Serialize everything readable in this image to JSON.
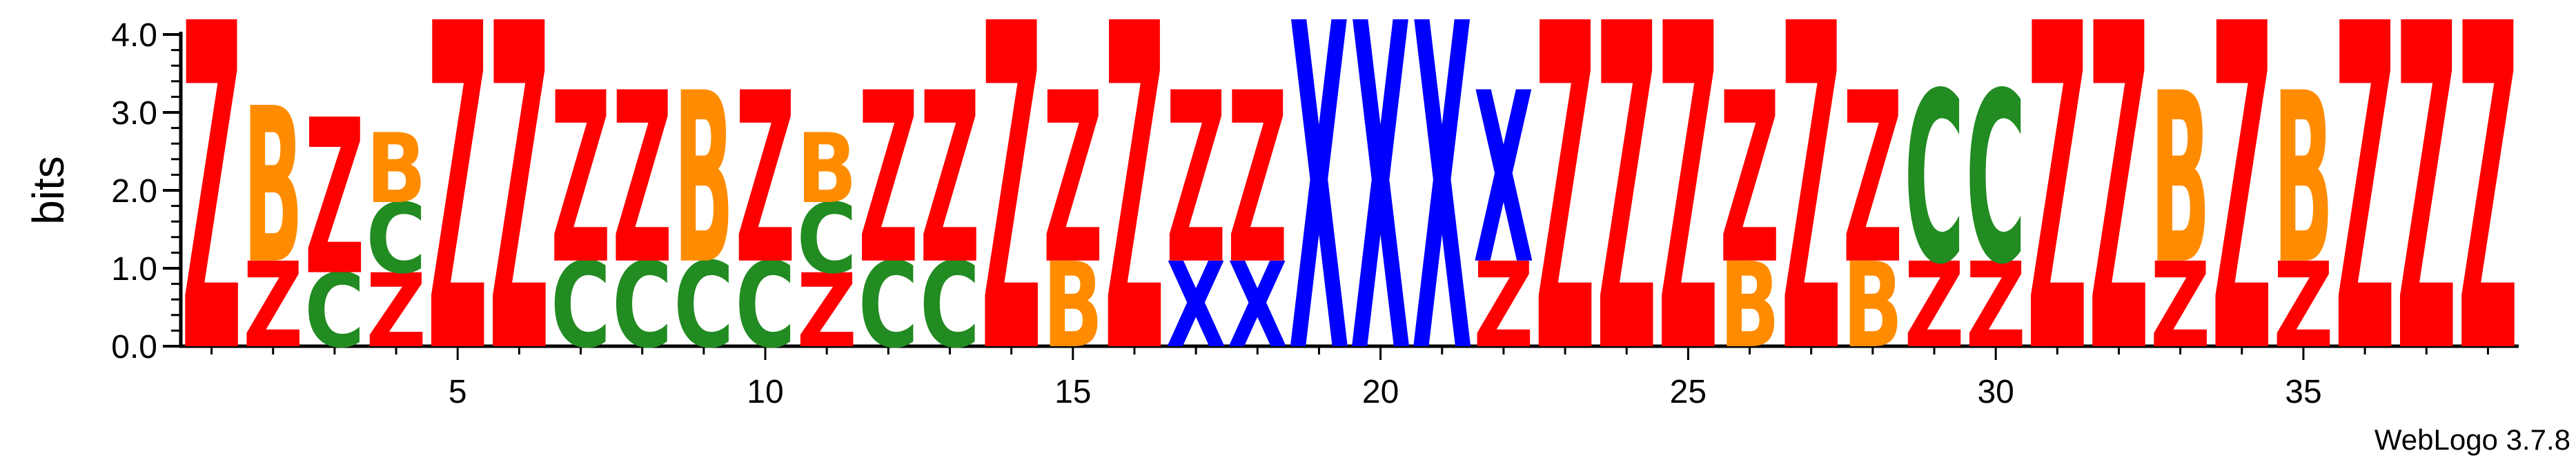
{
  "chart_data": {
    "type": "sequence-logo",
    "ylabel": "bits",
    "ylim": [
      0,
      4.0
    ],
    "yticks": [
      "0.0",
      "1.0",
      "2.0",
      "3.0",
      "4.0"
    ],
    "xticks": [
      5,
      10,
      15,
      20,
      25,
      30,
      35
    ],
    "footer": "WebLogo 3.7.8",
    "colors": {
      "Z": "#ff0000",
      "B": "#ff8c00",
      "C": "#228b22",
      "X": "#0000ff"
    },
    "positions": [
      {
        "pos": 1,
        "stack": [
          {
            "letter": "Z",
            "bits": 4.2
          }
        ]
      },
      {
        "pos": 2,
        "stack": [
          {
            "letter": "Z",
            "bits": 1.1
          },
          {
            "letter": "B",
            "bits": 2.0
          }
        ]
      },
      {
        "pos": 3,
        "stack": [
          {
            "letter": "C",
            "bits": 0.95
          },
          {
            "letter": "Z",
            "bits": 2.0
          }
        ]
      },
      {
        "pos": 4,
        "stack": [
          {
            "letter": "Z",
            "bits": 0.95
          },
          {
            "letter": "C",
            "bits": 0.9
          },
          {
            "letter": "B",
            "bits": 0.9
          }
        ]
      },
      {
        "pos": 5,
        "stack": [
          {
            "letter": "Z",
            "bits": 4.2
          }
        ]
      },
      {
        "pos": 6,
        "stack": [
          {
            "letter": "Z",
            "bits": 4.2
          }
        ]
      },
      {
        "pos": 7,
        "stack": [
          {
            "letter": "C",
            "bits": 1.1
          },
          {
            "letter": "Z",
            "bits": 2.2
          }
        ]
      },
      {
        "pos": 8,
        "stack": [
          {
            "letter": "C",
            "bits": 1.1
          },
          {
            "letter": "Z",
            "bits": 2.2
          }
        ]
      },
      {
        "pos": 9,
        "stack": [
          {
            "letter": "C",
            "bits": 1.1
          },
          {
            "letter": "B",
            "bits": 2.2
          }
        ]
      },
      {
        "pos": 10,
        "stack": [
          {
            "letter": "C",
            "bits": 1.1
          },
          {
            "letter": "Z",
            "bits": 2.2
          }
        ]
      },
      {
        "pos": 11,
        "stack": [
          {
            "letter": "Z",
            "bits": 0.95
          },
          {
            "letter": "C",
            "bits": 0.9
          },
          {
            "letter": "B",
            "bits": 0.9
          }
        ]
      },
      {
        "pos": 12,
        "stack": [
          {
            "letter": "C",
            "bits": 1.1
          },
          {
            "letter": "Z",
            "bits": 2.2
          }
        ]
      },
      {
        "pos": 13,
        "stack": [
          {
            "letter": "C",
            "bits": 1.1
          },
          {
            "letter": "Z",
            "bits": 2.2
          }
        ]
      },
      {
        "pos": 14,
        "stack": [
          {
            "letter": "Z",
            "bits": 4.2
          }
        ]
      },
      {
        "pos": 15,
        "stack": [
          {
            "letter": "B",
            "bits": 1.1
          },
          {
            "letter": "Z",
            "bits": 2.2
          }
        ]
      },
      {
        "pos": 16,
        "stack": [
          {
            "letter": "Z",
            "bits": 4.2
          }
        ]
      },
      {
        "pos": 17,
        "stack": [
          {
            "letter": "X",
            "bits": 1.1
          },
          {
            "letter": "Z",
            "bits": 2.2
          }
        ]
      },
      {
        "pos": 18,
        "stack": [
          {
            "letter": "X",
            "bits": 1.1
          },
          {
            "letter": "Z",
            "bits": 2.2
          }
        ]
      },
      {
        "pos": 19,
        "stack": [
          {
            "letter": "X",
            "bits": 4.2
          }
        ]
      },
      {
        "pos": 20,
        "stack": [
          {
            "letter": "X",
            "bits": 4.2
          }
        ]
      },
      {
        "pos": 21,
        "stack": [
          {
            "letter": "X",
            "bits": 4.2
          }
        ]
      },
      {
        "pos": 22,
        "stack": [
          {
            "letter": "Z",
            "bits": 1.1
          },
          {
            "letter": "X",
            "bits": 2.2
          }
        ]
      },
      {
        "pos": 23,
        "stack": [
          {
            "letter": "Z",
            "bits": 4.2
          }
        ]
      },
      {
        "pos": 24,
        "stack": [
          {
            "letter": "Z",
            "bits": 4.2
          }
        ]
      },
      {
        "pos": 25,
        "stack": [
          {
            "letter": "Z",
            "bits": 4.2
          }
        ]
      },
      {
        "pos": 26,
        "stack": [
          {
            "letter": "B",
            "bits": 1.1
          },
          {
            "letter": "Z",
            "bits": 2.2
          }
        ]
      },
      {
        "pos": 27,
        "stack": [
          {
            "letter": "Z",
            "bits": 4.2
          }
        ]
      },
      {
        "pos": 28,
        "stack": [
          {
            "letter": "B",
            "bits": 1.1
          },
          {
            "letter": "Z",
            "bits": 2.2
          }
        ]
      },
      {
        "pos": 29,
        "stack": [
          {
            "letter": "Z",
            "bits": 1.1
          },
          {
            "letter": "C",
            "bits": 2.2
          }
        ]
      },
      {
        "pos": 30,
        "stack": [
          {
            "letter": "Z",
            "bits": 1.1
          },
          {
            "letter": "C",
            "bits": 2.2
          }
        ]
      },
      {
        "pos": 31,
        "stack": [
          {
            "letter": "Z",
            "bits": 4.2
          }
        ]
      },
      {
        "pos": 32,
        "stack": [
          {
            "letter": "Z",
            "bits": 4.2
          }
        ]
      },
      {
        "pos": 33,
        "stack": [
          {
            "letter": "Z",
            "bits": 1.1
          },
          {
            "letter": "B",
            "bits": 2.2
          }
        ]
      },
      {
        "pos": 34,
        "stack": [
          {
            "letter": "Z",
            "bits": 4.2
          }
        ]
      },
      {
        "pos": 35,
        "stack": [
          {
            "letter": "Z",
            "bits": 1.1
          },
          {
            "letter": "B",
            "bits": 2.2
          }
        ]
      },
      {
        "pos": 36,
        "stack": [
          {
            "letter": "Z",
            "bits": 4.2
          }
        ]
      },
      {
        "pos": 37,
        "stack": [
          {
            "letter": "Z",
            "bits": 4.2
          }
        ]
      },
      {
        "pos": 38,
        "stack": [
          {
            "letter": "Z",
            "bits": 4.2
          }
        ]
      }
    ]
  }
}
